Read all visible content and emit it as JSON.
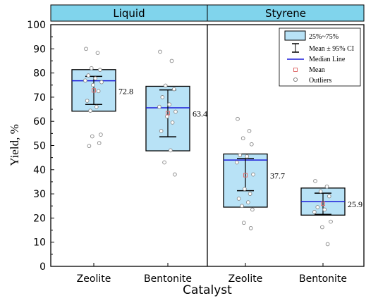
{
  "chart_data": {
    "type": "box",
    "ylabel": "Yield, %",
    "xlabel": "Catalyst",
    "ylim": [
      0,
      100
    ],
    "yticks": [
      0,
      10,
      20,
      30,
      40,
      50,
      60,
      70,
      80,
      90,
      100
    ],
    "panel_titles": [
      "Liquid",
      "Styrene"
    ],
    "header_color": "#80d4ec",
    "box_color": "#b8e2f6",
    "median_color": "#1a1ad8",
    "mean_color": "#e07070",
    "grid": false,
    "legend_position": "top-right",
    "legend": {
      "box": "25%~75%",
      "whisker": "Mean ± 95% CI",
      "median": "Median Line",
      "mean": "Mean",
      "outliers": "Outliers"
    },
    "groups": [
      {
        "panel": 0,
        "category": "Zeolite",
        "q1": 64.2,
        "q3": 81.4,
        "median": 76.8,
        "mean": 72.8,
        "ci_low": 67.0,
        "ci_high": 78.6,
        "mean_label": "72.8",
        "points": [
          90.0,
          88.3,
          82.0,
          81.3,
          79.0,
          77.8,
          76.9,
          76.2,
          75.0,
          72.5,
          68.5,
          66.0,
          64.4,
          54.5,
          53.8,
          51.0,
          49.8
        ]
      },
      {
        "panel": 0,
        "category": "Bentonite",
        "q1": 47.8,
        "q3": 74.5,
        "median": 65.6,
        "mean": 63.4,
        "ci_low": 53.6,
        "ci_high": 73.0,
        "mean_label": "63.4",
        "points": [
          88.8,
          85.0,
          74.8,
          73.3,
          70.0,
          67.0,
          66.0,
          64.0,
          62.0,
          59.5,
          56.0,
          48.0,
          43.0,
          38.0
        ]
      },
      {
        "panel": 1,
        "category": "Zeolite",
        "q1": 24.5,
        "q3": 46.5,
        "median": 44.0,
        "mean": 37.7,
        "ci_low": 31.3,
        "ci_high": 44.6,
        "mean_label": "37.7",
        "points": [
          61.0,
          56.0,
          53.0,
          50.5,
          46.0,
          45.5,
          43.0,
          38.0,
          32.0,
          30.0,
          28.0,
          26.5,
          25.0,
          23.5,
          18.0,
          15.8
        ]
      },
      {
        "panel": 1,
        "category": "Bentonite",
        "q1": 21.2,
        "q3": 32.4,
        "median": 26.8,
        "mean": 25.9,
        "ci_low": 21.5,
        "ci_high": 30.3,
        "mean_label": "25.9",
        "points": [
          35.3,
          33.0,
          31.0,
          29.0,
          24.5,
          23.5,
          22.5,
          18.5,
          16.2,
          9.2
        ]
      }
    ]
  }
}
